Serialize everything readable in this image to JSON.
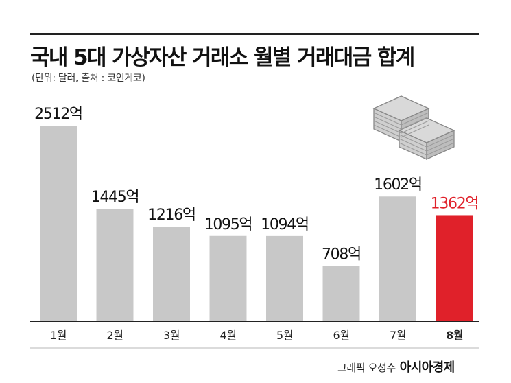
{
  "header": {
    "title": "국내 5대 가상자산 거래소 월별 거래대금 합계",
    "subtitle": "(단위: 달러, 출처 : 코인게코)"
  },
  "credit": {
    "artist": "그래픽 오성수",
    "brand": "아시아경제"
  },
  "icons": {
    "decoration": "money-stack-icon"
  },
  "colors": {
    "bar_default": "#c8c8c8",
    "bar_highlight": "#e0212a",
    "label_default": "#111111",
    "label_highlight": "#e0212a",
    "baseline": "#222222"
  },
  "chart_data": {
    "type": "bar",
    "title": "국내 5대 가상자산 거래소 월별 거래대금 합계",
    "unit_suffix": "억",
    "categories": [
      "1월",
      "2월",
      "3월",
      "4월",
      "5월",
      "6월",
      "7월",
      "8월"
    ],
    "values": [
      2512,
      1445,
      1216,
      1095,
      1094,
      708,
      1602,
      1362
    ],
    "data_labels": [
      "2512억",
      "1445억",
      "1216억",
      "1095억",
      "1094억",
      "708억",
      "1602억",
      "1362억"
    ],
    "highlight_index": 7,
    "ylim": [
      0,
      2512
    ],
    "grid": false,
    "legend": "none"
  }
}
